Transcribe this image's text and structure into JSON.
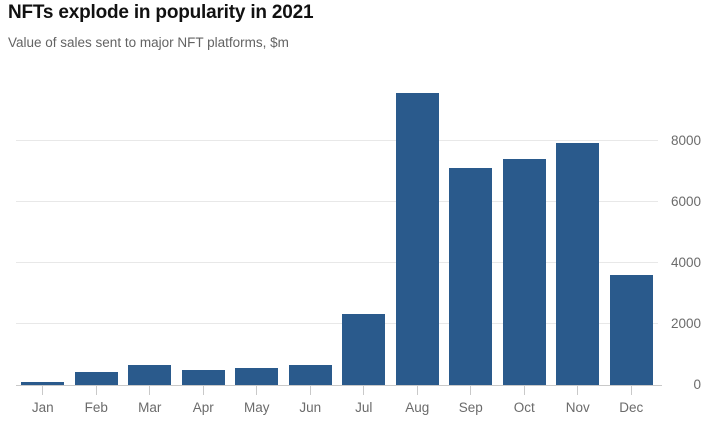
{
  "header": {
    "title": "NFTs explode in popularity in 2021",
    "subtitle": "Value of sales sent to major NFT platforms, $m"
  },
  "chart_data": {
    "type": "bar",
    "title": "NFTs explode in popularity in 2021",
    "subtitle": "Value of sales sent to major NFT platforms, $m",
    "categories": [
      "Jan",
      "Feb",
      "Mar",
      "Apr",
      "May",
      "Jun",
      "Jul",
      "Aug",
      "Sep",
      "Oct",
      "Nov",
      "Dec"
    ],
    "values": [
      110,
      420,
      645,
      505,
      570,
      640,
      2330,
      9560,
      7120,
      7400,
      7920,
      3600
    ],
    "xlabel": "",
    "ylabel": "",
    "yticks": [
      0,
      2000,
      4000,
      6000,
      8000
    ],
    "ylim": [
      0,
      9824
    ],
    "grid": "horizontal",
    "legend": "none",
    "yaxis_side": "right",
    "bar_color": "#2a5a8c"
  },
  "colors": {
    "bar": "#2a5a8c",
    "gridline": "#e8e8e8",
    "axis": "#c9c9c9",
    "title_text": "#111111",
    "muted_text": "#636363",
    "tick_text": "#6b6b6b",
    "background": "#ffffff"
  }
}
